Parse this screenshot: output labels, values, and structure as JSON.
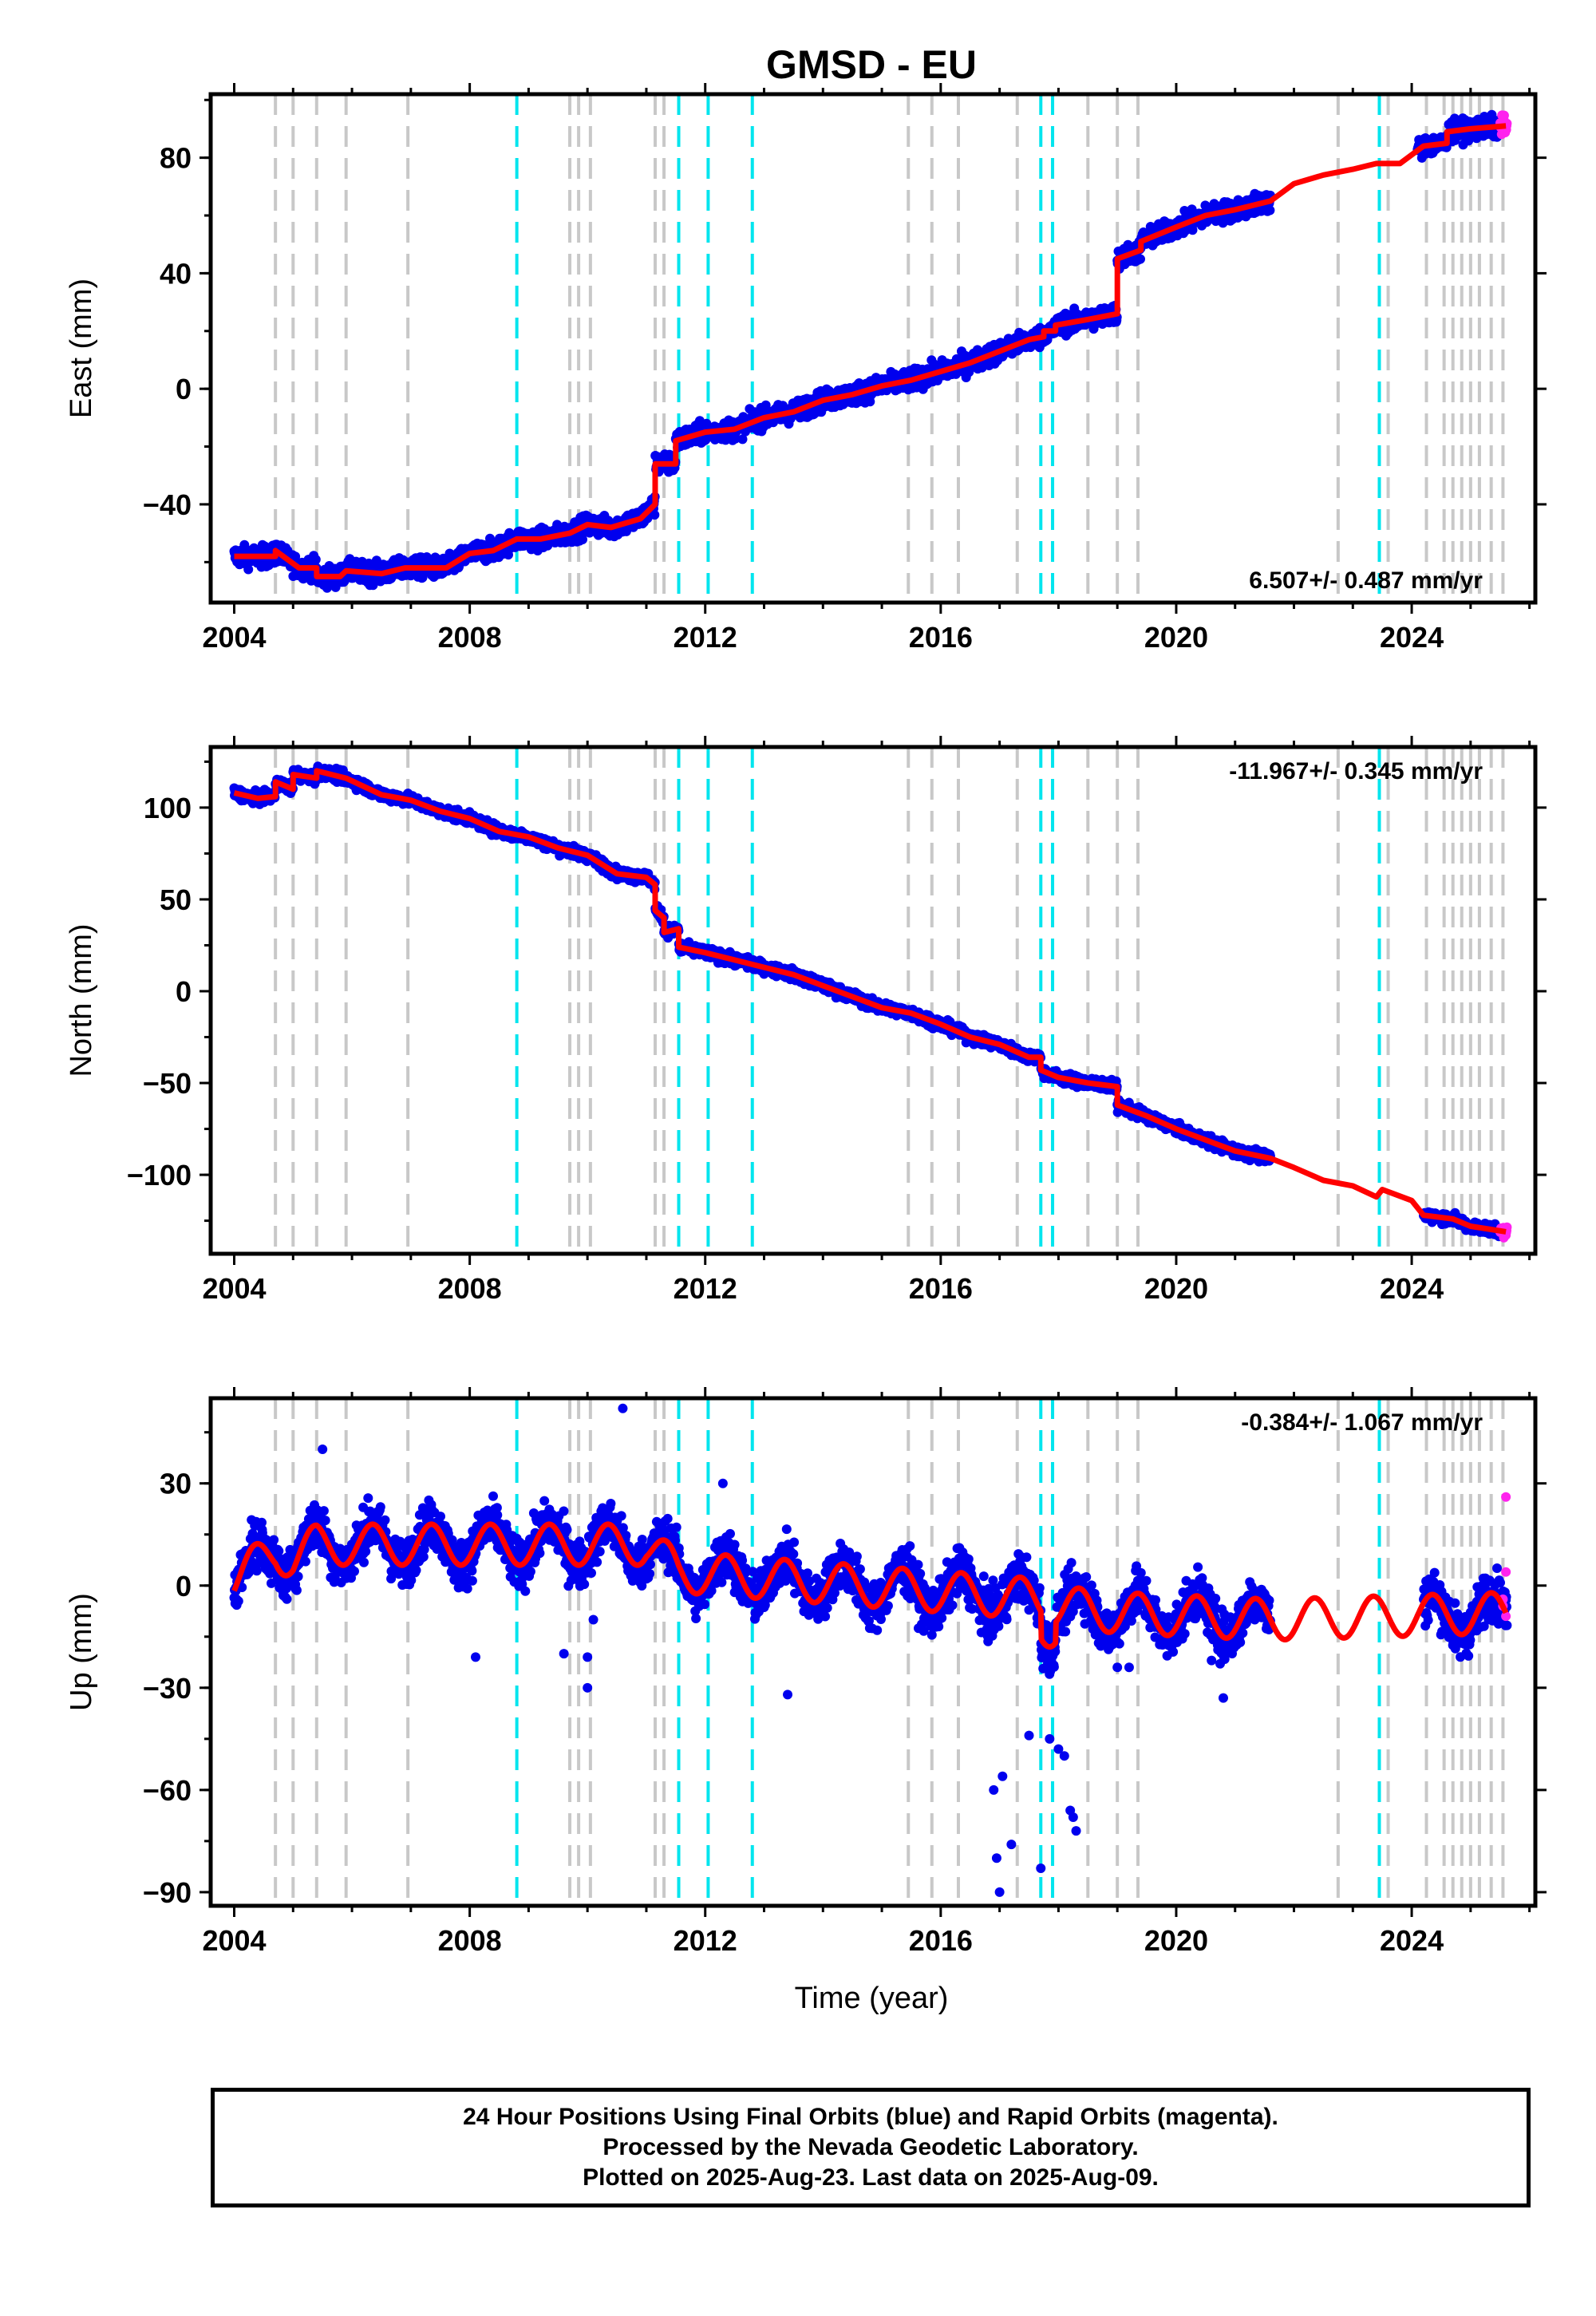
{
  "chart_data": [
    {
      "type": "scatter",
      "title": "GMSD - EU",
      "xlabel": "",
      "ylabel": "East (mm)",
      "xlim": [
        2003.6,
        2026.1
      ],
      "ylim": [
        -74,
        102
      ],
      "xticks": [
        2004,
        2008,
        2012,
        2016,
        2020,
        2024
      ],
      "yticks": [
        -40,
        0,
        40,
        80
      ],
      "rate": "6.507+/- 0.487 mm/yr",
      "rate_position": "bottom-right",
      "model_points": [
        [
          2004.0,
          -58
        ],
        [
          2004.7,
          -58
        ],
        [
          2004.7,
          -56
        ],
        [
          2005.1,
          -62
        ],
        [
          2005.4,
          -62
        ],
        [
          2005.4,
          -65
        ],
        [
          2005.8,
          -65
        ],
        [
          2005.9,
          -63
        ],
        [
          2006.5,
          -64
        ],
        [
          2006.9,
          -62
        ],
        [
          2006.9,
          -62
        ],
        [
          2007.6,
          -62
        ],
        [
          2008.0,
          -57
        ],
        [
          2008.4,
          -56
        ],
        [
          2008.8,
          -52
        ],
        [
          2009.2,
          -52
        ],
        [
          2009.7,
          -50
        ],
        [
          2009.7,
          -50
        ],
        [
          2010.0,
          -47
        ],
        [
          2010.4,
          -48
        ],
        [
          2010.9,
          -45
        ],
        [
          2011.15,
          -40
        ],
        [
          2011.15,
          -26
        ],
        [
          2011.5,
          -26
        ],
        [
          2011.5,
          -18
        ],
        [
          2012.0,
          -15
        ],
        [
          2012.5,
          -14
        ],
        [
          2013.0,
          -10
        ],
        [
          2013.5,
          -8
        ],
        [
          2014.0,
          -4
        ],
        [
          2014.5,
          -2
        ],
        [
          2015.0,
          1
        ],
        [
          2015.5,
          3
        ],
        [
          2016.0,
          6
        ],
        [
          2016.5,
          9
        ],
        [
          2017.0,
          13
        ],
        [
          2017.5,
          17
        ],
        [
          2017.75,
          18
        ],
        [
          2017.75,
          20
        ],
        [
          2017.95,
          20
        ],
        [
          2017.95,
          22
        ],
        [
          2018.5,
          24
        ],
        [
          2019.0,
          26
        ],
        [
          2019.0,
          45
        ],
        [
          2019.4,
          48
        ],
        [
          2019.4,
          51
        ],
        [
          2020.0,
          56
        ],
        [
          2020.5,
          60
        ],
        [
          2021.0,
          62
        ],
        [
          2021.6,
          65
        ],
        [
          2022.0,
          71
        ],
        [
          2022.5,
          74
        ],
        [
          2023.0,
          76
        ],
        [
          2023.4,
          78
        ],
        [
          2023.8,
          78
        ],
        [
          2024.2,
          84
        ],
        [
          2024.6,
          85
        ],
        [
          2024.6,
          89
        ],
        [
          2025.0,
          90
        ],
        [
          2025.6,
          91
        ]
      ],
      "obs_spread": 3.5,
      "obs_gaps": [
        [
          2021.6,
          2024.1
        ]
      ],
      "rapid_range": [
        2025.5,
        2025.6
      ],
      "event_lines_gray": [
        2004.7,
        2005.0,
        2005.4,
        2005.9,
        2006.95,
        2009.7,
        2009.85,
        2010.05,
        2011.15,
        2011.3,
        2015.45,
        2015.85,
        2016.3,
        2017.3,
        2018.5,
        2019.0,
        2019.35,
        2022.75,
        2023.6,
        2024.25,
        2024.55,
        2024.7,
        2024.85,
        2025.0,
        2025.15,
        2025.35,
        2025.55
      ],
      "event_lines_cyan": [
        2008.8,
        2011.55,
        2012.05,
        2012.8,
        2017.7,
        2017.9,
        2023.45
      ]
    },
    {
      "type": "scatter",
      "title": "",
      "xlabel": "",
      "ylabel": "North (mm)",
      "xlim": [
        2003.6,
        2026.1
      ],
      "ylim": [
        -143,
        133
      ],
      "xticks": [
        2004,
        2008,
        2012,
        2016,
        2020,
        2024
      ],
      "yticks": [
        -100,
        -50,
        0,
        50,
        100
      ],
      "rate": "-11.967+/- 0.345 mm/yr",
      "rate_position": "top-right",
      "model_points": [
        [
          2004.0,
          108
        ],
        [
          2004.4,
          105
        ],
        [
          2004.7,
          106
        ],
        [
          2004.7,
          114
        ],
        [
          2005.0,
          110
        ],
        [
          2005.0,
          118
        ],
        [
          2005.4,
          116
        ],
        [
          2005.4,
          120
        ],
        [
          2005.9,
          116
        ],
        [
          2006.5,
          107
        ],
        [
          2007.0,
          104
        ],
        [
          2007.5,
          98
        ],
        [
          2008.0,
          94
        ],
        [
          2008.5,
          87
        ],
        [
          2009.0,
          84
        ],
        [
          2009.5,
          78
        ],
        [
          2010.0,
          74
        ],
        [
          2010.5,
          64
        ],
        [
          2011.0,
          62
        ],
        [
          2011.15,
          58
        ],
        [
          2011.15,
          44
        ],
        [
          2011.3,
          40
        ],
        [
          2011.3,
          32
        ],
        [
          2011.55,
          34
        ],
        [
          2011.55,
          24
        ],
        [
          2012.0,
          21
        ],
        [
          2012.5,
          17
        ],
        [
          2013.0,
          13
        ],
        [
          2013.5,
          9
        ],
        [
          2014.0,
          3
        ],
        [
          2014.5,
          -3
        ],
        [
          2015.0,
          -9
        ],
        [
          2015.5,
          -12
        ],
        [
          2016.0,
          -18
        ],
        [
          2016.5,
          -25
        ],
        [
          2017.0,
          -29
        ],
        [
          2017.5,
          -36
        ],
        [
          2017.7,
          -36
        ],
        [
          2017.7,
          -43
        ],
        [
          2018.0,
          -47
        ],
        [
          2018.5,
          -50
        ],
        [
          2019.0,
          -52
        ],
        [
          2019.0,
          -62
        ],
        [
          2019.5,
          -68
        ],
        [
          2020.0,
          -75
        ],
        [
          2020.5,
          -81
        ],
        [
          2021.0,
          -87
        ],
        [
          2021.6,
          -91
        ],
        [
          2022.0,
          -96
        ],
        [
          2022.5,
          -103
        ],
        [
          2023.0,
          -106
        ],
        [
          2023.4,
          -112
        ],
        [
          2023.5,
          -108
        ],
        [
          2024.0,
          -114
        ],
        [
          2024.2,
          -122
        ],
        [
          2024.7,
          -124
        ],
        [
          2025.0,
          -128
        ],
        [
          2025.6,
          -131
        ]
      ],
      "obs_spread": 3,
      "obs_gaps": [
        [
          2021.6,
          2024.2
        ]
      ],
      "rapid_range": [
        2025.5,
        2025.6
      ],
      "event_lines_gray": [
        2004.7,
        2005.0,
        2005.4,
        2005.9,
        2006.95,
        2009.7,
        2009.85,
        2010.05,
        2011.15,
        2011.3,
        2015.45,
        2015.85,
        2016.3,
        2017.3,
        2018.5,
        2019.0,
        2019.35,
        2022.75,
        2023.6,
        2024.25,
        2024.55,
        2024.7,
        2024.85,
        2025.0,
        2025.15,
        2025.35,
        2025.55
      ],
      "event_lines_cyan": [
        2008.8,
        2011.55,
        2012.05,
        2012.8,
        2017.7,
        2017.9,
        2023.45
      ]
    },
    {
      "type": "scatter",
      "title": "",
      "xlabel": "Time (year)",
      "ylabel": "Up (mm)",
      "xlim": [
        2003.6,
        2026.1
      ],
      "ylim": [
        -94,
        55
      ],
      "xticks": [
        2004,
        2008,
        2012,
        2016,
        2020,
        2024
      ],
      "yticks": [
        -90,
        -60,
        -30,
        0,
        30
      ],
      "rate": "-0.384+/- 1.067 mm/yr",
      "rate_position": "top-right",
      "model_trend": [
        [
          2004.0,
          2
        ],
        [
          2004.7,
          10
        ],
        [
          2005.0,
          8
        ],
        [
          2005.4,
          12
        ],
        [
          2011.0,
          12
        ],
        [
          2011.55,
          4
        ],
        [
          2017.7,
          -4
        ],
        [
          2017.7,
          -12
        ],
        [
          2017.95,
          -12
        ],
        [
          2017.95,
          -6
        ],
        [
          2019.0,
          -8
        ],
        [
          2021.6,
          -10
        ],
        [
          2025.6,
          -8
        ]
      ],
      "seasonal_amplitude": 6,
      "obs_spread": 7,
      "obs_gaps": [
        [
          2021.6,
          2024.2
        ]
      ],
      "outliers": [
        [
          2010.0,
          -21
        ],
        [
          2010.0,
          -30
        ],
        [
          2012.5,
          12
        ],
        [
          2012.5,
          -2
        ],
        [
          2012.3,
          30
        ],
        [
          2013.4,
          -32
        ],
        [
          2016.9,
          -60
        ],
        [
          2016.95,
          -80
        ],
        [
          2017.0,
          -90
        ],
        [
          2017.05,
          -56
        ],
        [
          2017.2,
          -76
        ],
        [
          2017.5,
          -44
        ],
        [
          2017.7,
          -83
        ],
        [
          2017.85,
          -45
        ],
        [
          2018.0,
          -48
        ],
        [
          2018.1,
          -50
        ],
        [
          2018.2,
          -66
        ],
        [
          2018.25,
          -68
        ],
        [
          2018.3,
          -72
        ],
        [
          2019.0,
          -24
        ],
        [
          2019.2,
          -24
        ],
        [
          2020.6,
          -22
        ],
        [
          2020.8,
          -33
        ],
        [
          2008.1,
          -21
        ],
        [
          2009.6,
          -20
        ],
        [
          2010.1,
          -10
        ],
        [
          2010.6,
          52
        ],
        [
          2005.5,
          40
        ]
      ],
      "rapid_points": [
        [
          2025.55,
          -6
        ],
        [
          2025.55,
          -4
        ],
        [
          2025.6,
          26
        ],
        [
          2025.6,
          4
        ],
        [
          2025.6,
          -9
        ]
      ],
      "event_lines_gray": [
        2004.7,
        2005.0,
        2005.4,
        2005.9,
        2006.95,
        2009.7,
        2009.85,
        2010.05,
        2011.15,
        2011.3,
        2015.45,
        2015.85,
        2016.3,
        2017.3,
        2018.5,
        2019.0,
        2019.35,
        2022.75,
        2023.6,
        2024.25,
        2024.55,
        2024.7,
        2024.85,
        2025.0,
        2025.15,
        2025.35,
        2025.55
      ],
      "event_lines_cyan": [
        2008.8,
        2011.55,
        2012.05,
        2012.8,
        2017.7,
        2017.9,
        2023.45
      ]
    }
  ],
  "footer": {
    "line1": "24 Hour Positions Using Final Orbits (blue) and Rapid Orbits (magenta).",
    "line2": "Processed by the Nevada Geodetic Laboratory.",
    "line3": "Plotted on 2025-Aug-23. Last data on 2025-Aug-09."
  },
  "colors": {
    "final_orbits": "#0000ee",
    "rapid_orbits": "#ff22ee",
    "model": "#ff0000",
    "event_gray": "#c8c8c8",
    "event_cyan": "#00e5ee"
  }
}
